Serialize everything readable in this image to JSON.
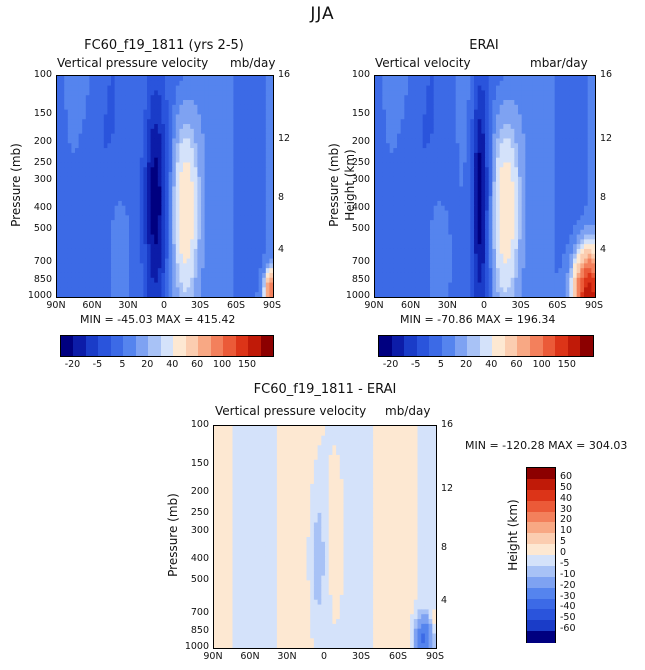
{
  "page_title": "JJA",
  "panels": [
    {
      "title": "FC60_f19_1811 (yrs 2-5)",
      "subtitle_left": "Vertical pressure velocity",
      "subtitle_right": "mb/day",
      "min_max": "MIN = -45.03   MAX = 415.42"
    },
    {
      "title": "ERAI",
      "subtitle_left": "Vertical velocity",
      "subtitle_right": "mbar/day",
      "min_max": "MIN = -70.86   MAX = 196.34"
    },
    {
      "title": "FC60_f19_1811 - ERAI",
      "subtitle_left": "Vertical pressure velocity",
      "subtitle_right": "mb/day",
      "min_max": "MIN = -120.28   MAX = 304.03"
    }
  ],
  "axes": {
    "ylabel": "Pressure (mb)",
    "ylabel_right": "Height (km)",
    "pressure_ticks": [
      "100",
      "150",
      "200",
      "250",
      "300",
      "400",
      "500",
      "700",
      "850",
      "1000"
    ],
    "height_ticks": [
      "16",
      "12",
      "8",
      "4"
    ],
    "lat_ticks": [
      "90N",
      "60N",
      "30N",
      "0",
      "30S",
      "60S",
      "90S"
    ]
  },
  "colorbar_top": {
    "labels": [
      "-20",
      "-5",
      "5",
      "20",
      "40",
      "60",
      "100",
      "150"
    ],
    "colors": [
      "#000080",
      "#0c1ca8",
      "#1a3cc8",
      "#2a54dc",
      "#3c6ae6",
      "#5584ee",
      "#7ea2f2",
      "#a8c2f6",
      "#d4e2fa",
      "#fde8d2",
      "#fbcdb0",
      "#f8a884",
      "#f3805c",
      "#eb5a38",
      "#dc3418",
      "#c01a08",
      "#8c0000"
    ]
  },
  "colorbar_diff": {
    "labels": [
      "60",
      "50",
      "40",
      "30",
      "20",
      "10",
      "5",
      "0",
      "-5",
      "-10",
      "-20",
      "-30",
      "-40",
      "-50",
      "-60"
    ],
    "colors": [
      "#8c0000",
      "#c01a08",
      "#dc3418",
      "#eb5a38",
      "#f3805c",
      "#f8a884",
      "#fbcdb0",
      "#fde8d2",
      "#d4e2fa",
      "#a8c2f6",
      "#7ea2f2",
      "#5584ee",
      "#3c6ae6",
      "#2a54dc",
      "#1a3cc8",
      "#000080"
    ]
  },
  "chart_data": [
    {
      "type": "heatmap",
      "title": "FC60_f19_1811 (yrs 2-5)",
      "variable": "Vertical pressure velocity (mb/day)",
      "x": [
        "90N",
        "60N",
        "30N",
        "0",
        "30S",
        "60S",
        "90S"
      ],
      "y_pressure_mb": [
        100,
        150,
        200,
        250,
        300,
        400,
        500,
        700,
        850,
        1000
      ],
      "min": -45.03,
      "max": 415.42,
      "features": [
        "strong ascent (~-20) near 10N at 200-850 mb",
        "descent (~5-20) near 10-20S",
        "strong descent near 80-90S low levels"
      ]
    },
    {
      "type": "heatmap",
      "title": "ERAI",
      "variable": "Vertical velocity (mbar/day)",
      "x": [
        "90N",
        "60N",
        "30N",
        "0",
        "30S",
        "60S",
        "90S"
      ],
      "y_pressure_mb": [
        100,
        150,
        200,
        250,
        300,
        400,
        500,
        700,
        850,
        1000
      ],
      "min": -70.86,
      "max": 196.34,
      "features": [
        "strong ascent (~-20) near 5N",
        "descent (~5-20) near 10-25S",
        "descent (40-150) near 70-90S below 700 mb"
      ]
    },
    {
      "type": "heatmap",
      "title": "FC60_f19_1811 - ERAI",
      "variable": "Vertical pressure velocity difference (mb/day)",
      "x": [
        "90N",
        "60N",
        "30N",
        "0",
        "30S",
        "60S",
        "90S"
      ],
      "y_pressure_mb": [
        100,
        150,
        200,
        250,
        300,
        400,
        500,
        700,
        850,
        1000
      ],
      "min": -120.28,
      "max": 304.03,
      "features": [
        "mostly -5 to 5",
        "negative band near 10N",
        "strong negative near 70-90S at low levels"
      ]
    }
  ]
}
